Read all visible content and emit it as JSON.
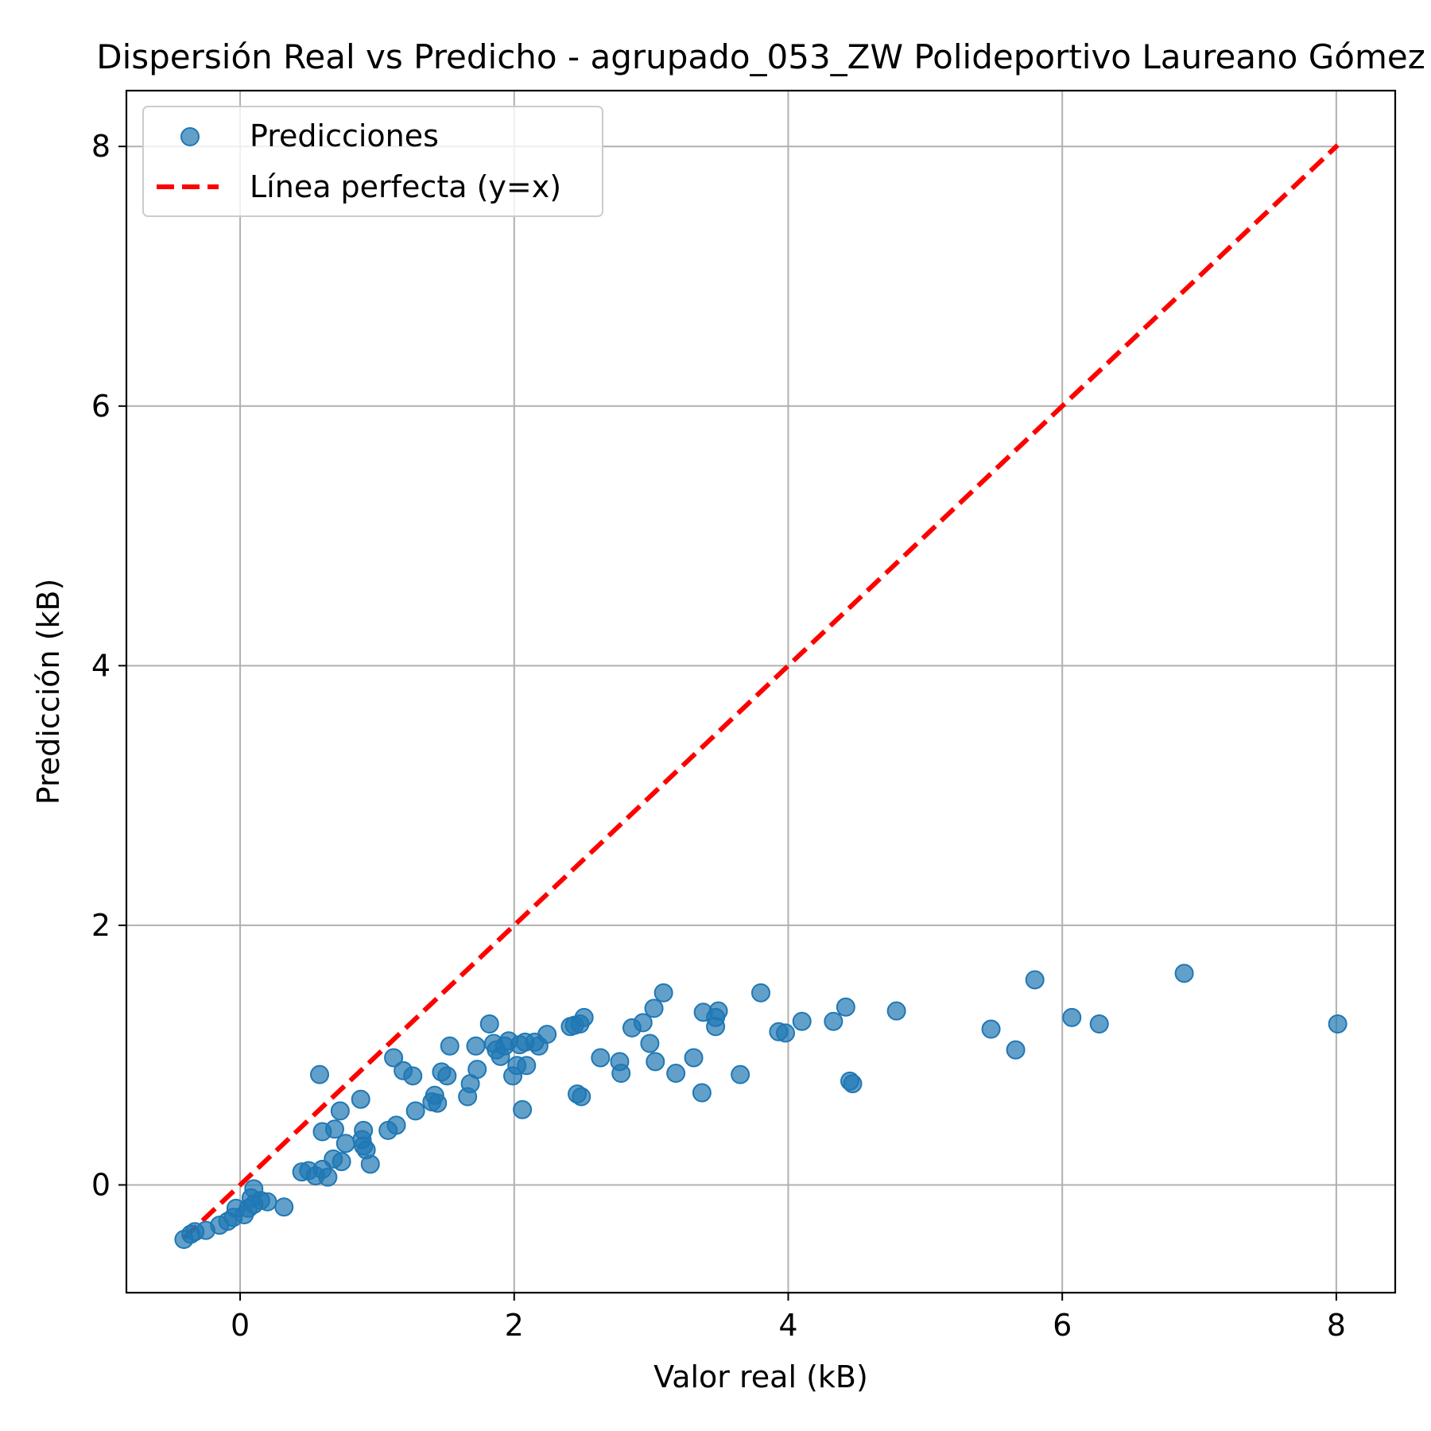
{
  "chart_data": {
    "type": "scatter",
    "title": "Dispersión Real vs Predicho - agrupado_053_ZW Polideportivo Laureano Gómez",
    "xlabel": "Valor real (kB)",
    "ylabel": "Predicción (kB)",
    "xlim": [
      -0.83,
      8.43
    ],
    "ylim": [
      -0.83,
      8.43
    ],
    "xticks": [
      0,
      2,
      4,
      6,
      8
    ],
    "yticks": [
      0,
      2,
      4,
      6,
      8
    ],
    "grid": true,
    "legend_position": "top-left",
    "series": [
      {
        "name": "Predicciones",
        "color": "#1f77b4",
        "points": [
          [
            -0.41,
            -0.42
          ],
          [
            -0.36,
            -0.38
          ],
          [
            -0.33,
            -0.36
          ],
          [
            -0.25,
            -0.35
          ],
          [
            -0.15,
            -0.31
          ],
          [
            -0.09,
            -0.28
          ],
          [
            -0.05,
            -0.25
          ],
          [
            -0.03,
            -0.18
          ],
          [
            0.03,
            -0.23
          ],
          [
            0.06,
            -0.18
          ],
          [
            0.08,
            -0.1
          ],
          [
            0.1,
            -0.03
          ],
          [
            0.1,
            -0.15
          ],
          [
            0.15,
            -0.12
          ],
          [
            0.2,
            -0.13
          ],
          [
            0.32,
            -0.17
          ],
          [
            0.45,
            0.1
          ],
          [
            0.5,
            0.11
          ],
          [
            0.55,
            0.07
          ],
          [
            0.6,
            0.12
          ],
          [
            0.64,
            0.06
          ],
          [
            0.68,
            0.2
          ],
          [
            0.74,
            0.18
          ],
          [
            0.69,
            0.43
          ],
          [
            0.6,
            0.41
          ],
          [
            0.58,
            0.85
          ],
          [
            0.73,
            0.57
          ],
          [
            0.77,
            0.32
          ],
          [
            0.88,
            0.66
          ],
          [
            0.89,
            0.35
          ],
          [
            0.9,
            0.42
          ],
          [
            0.9,
            0.3
          ],
          [
            0.92,
            0.27
          ],
          [
            0.95,
            0.16
          ],
          [
            1.08,
            0.42
          ],
          [
            1.12,
            0.98
          ],
          [
            1.14,
            0.46
          ],
          [
            1.19,
            0.88
          ],
          [
            1.26,
            0.84
          ],
          [
            1.28,
            0.57
          ],
          [
            1.4,
            0.64
          ],
          [
            1.42,
            0.69
          ],
          [
            1.44,
            0.63
          ],
          [
            1.47,
            0.87
          ],
          [
            1.51,
            0.84
          ],
          [
            1.53,
            1.07
          ],
          [
            1.66,
            0.68
          ],
          [
            1.68,
            0.78
          ],
          [
            1.72,
            1.07
          ],
          [
            1.73,
            0.89
          ],
          [
            1.82,
            1.24
          ],
          [
            1.85,
            1.09
          ],
          [
            1.87,
            1.04
          ],
          [
            1.9,
            0.99
          ],
          [
            1.93,
            1.07
          ],
          [
            1.96,
            1.11
          ],
          [
            1.99,
            0.84
          ],
          [
            2.02,
            0.92
          ],
          [
            2.04,
            1.08
          ],
          [
            2.06,
            0.58
          ],
          [
            2.08,
            1.1
          ],
          [
            2.09,
            0.92
          ],
          [
            2.15,
            1.1
          ],
          [
            2.18,
            1.07
          ],
          [
            2.24,
            1.16
          ],
          [
            2.41,
            1.22
          ],
          [
            2.44,
            1.23
          ],
          [
            2.46,
            0.7
          ],
          [
            2.48,
            1.24
          ],
          [
            2.49,
            0.68
          ],
          [
            2.51,
            1.29
          ],
          [
            2.63,
            0.98
          ],
          [
            2.77,
            0.95
          ],
          [
            2.78,
            0.86
          ],
          [
            2.86,
            1.21
          ],
          [
            2.94,
            1.25
          ],
          [
            2.99,
            1.09
          ],
          [
            3.02,
            1.36
          ],
          [
            3.03,
            0.95
          ],
          [
            3.09,
            1.48
          ],
          [
            3.18,
            0.86
          ],
          [
            3.31,
            0.98
          ],
          [
            3.37,
            0.71
          ],
          [
            3.38,
            1.33
          ],
          [
            3.47,
            1.29
          ],
          [
            3.47,
            1.22
          ],
          [
            3.49,
            1.34
          ],
          [
            3.65,
            0.85
          ],
          [
            3.8,
            1.48
          ],
          [
            3.93,
            1.18
          ],
          [
            3.98,
            1.17
          ],
          [
            4.1,
            1.26
          ],
          [
            4.33,
            1.26
          ],
          [
            4.42,
            1.37
          ],
          [
            4.45,
            0.8
          ],
          [
            4.47,
            0.78
          ],
          [
            4.79,
            1.34
          ],
          [
            5.48,
            1.2
          ],
          [
            5.66,
            1.04
          ],
          [
            5.8,
            1.58
          ],
          [
            6.07,
            1.29
          ],
          [
            6.27,
            1.24
          ],
          [
            6.89,
            1.63
          ],
          [
            8.01,
            1.24
          ]
        ]
      },
      {
        "name": "Línea perfecta (y=x)",
        "color": "#ff0000",
        "style": "dashed",
        "points": [
          [
            -0.41,
            -0.41
          ],
          [
            8.01,
            8.01
          ]
        ]
      }
    ]
  }
}
